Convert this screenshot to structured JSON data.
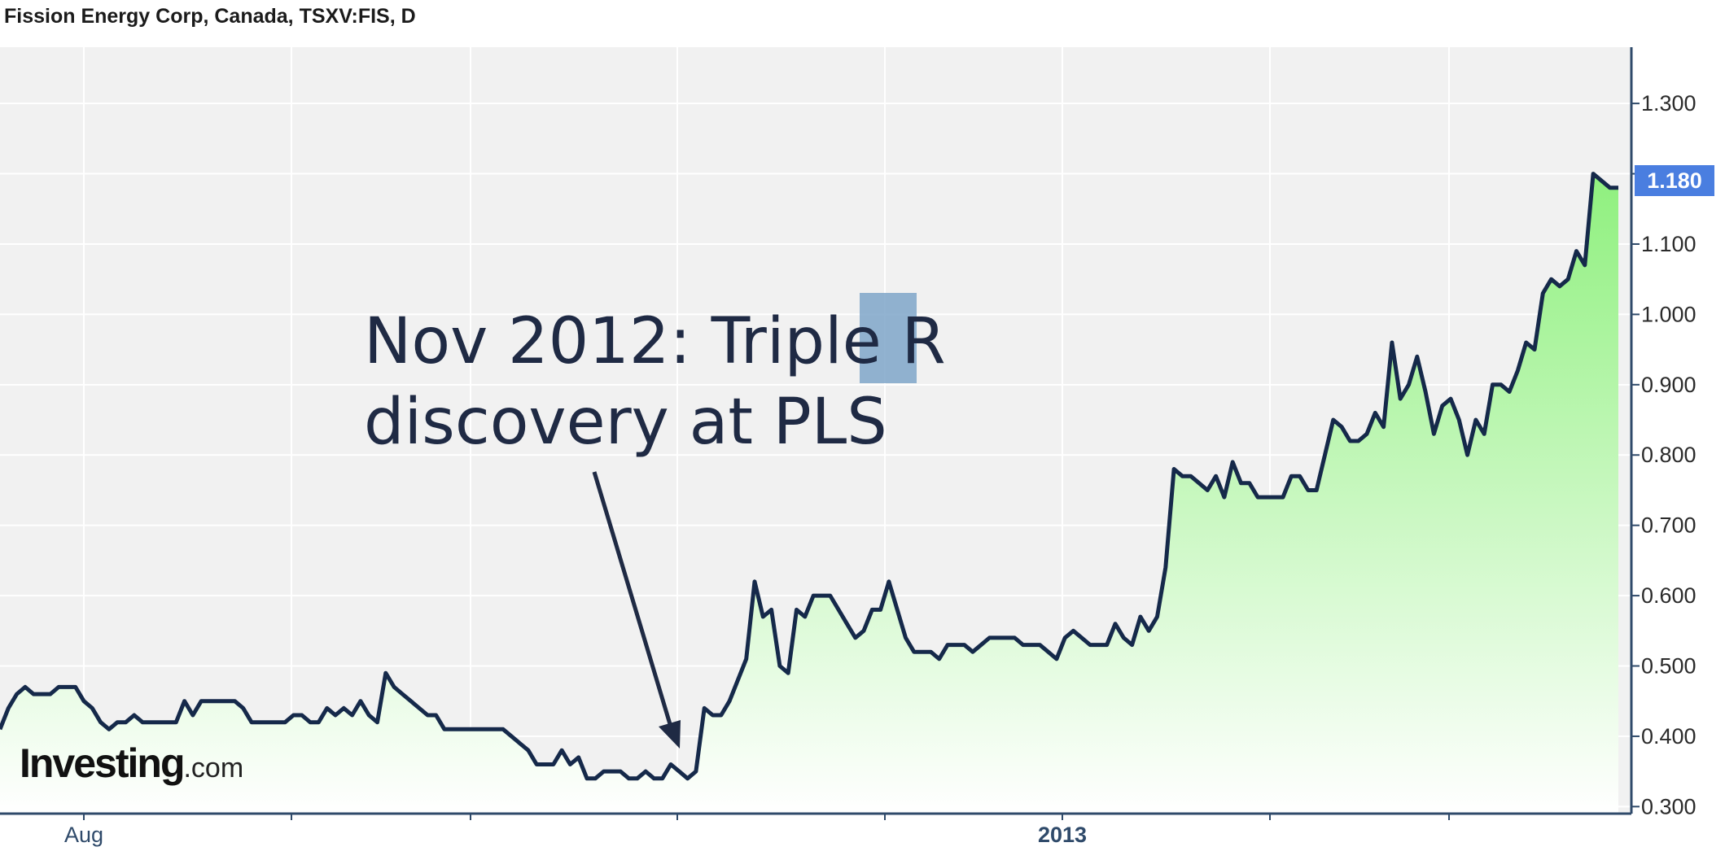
{
  "header": {
    "title": "Fission Energy Corp, Canada, TSXV:FIS, D"
  },
  "annotation": {
    "line1_prefix": "Nov 2012: Triple ",
    "line1_highlight": "R",
    "line2": "discovery at PLS"
  },
  "logo": {
    "name": "Investing",
    "domain": ".com"
  },
  "price_badge": {
    "value": "1.180"
  },
  "colors": {
    "line": "#15294a",
    "fill_top": "#8ff07e",
    "fill_bottom": "#ffffff",
    "plot_bg": "#f1f1f1",
    "axis": "#2f4a6a",
    "badge": "#4a7ee0",
    "highlight": "#7fa6c9"
  },
  "chart_data": {
    "type": "area",
    "title": "Fission Energy Corp, Canada, TSXV:FIS, D",
    "xlabel": "",
    "ylabel": "",
    "ylim": [
      0.29,
      1.38
    ],
    "y_ticks": [
      "1.300",
      "1.200",
      "1.100",
      "1.000",
      "0.900",
      "0.800",
      "0.700",
      "0.600",
      "0.500",
      "0.400",
      "0.300"
    ],
    "x_tick_labels": [
      "Aug",
      "2013"
    ],
    "grid": true,
    "series": [
      {
        "values": [
          0.41,
          0.44,
          0.46,
          0.47,
          0.46,
          0.46,
          0.46,
          0.47,
          0.47,
          0.47,
          0.45,
          0.44,
          0.42,
          0.41,
          0.42,
          0.42,
          0.43,
          0.42,
          0.42,
          0.42,
          0.42,
          0.42,
          0.45,
          0.43,
          0.45,
          0.45,
          0.45,
          0.45,
          0.45,
          0.44,
          0.42,
          0.42,
          0.42,
          0.42,
          0.42,
          0.43,
          0.43,
          0.42,
          0.42,
          0.44,
          0.43,
          0.44,
          0.43,
          0.45,
          0.43,
          0.42,
          0.49,
          0.47,
          0.46,
          0.45,
          0.44,
          0.43,
          0.43,
          0.41,
          0.41,
          0.41,
          0.41,
          0.41,
          0.41,
          0.41,
          0.41,
          0.4,
          0.39,
          0.38,
          0.36,
          0.36,
          0.36,
          0.38,
          0.36,
          0.37,
          0.34,
          0.34,
          0.35,
          0.35,
          0.35,
          0.34,
          0.34,
          0.35,
          0.34,
          0.34,
          0.36,
          0.35,
          0.34,
          0.35,
          0.44,
          0.43,
          0.43,
          0.45,
          0.48,
          0.51,
          0.62,
          0.57,
          0.58,
          0.5,
          0.49,
          0.58,
          0.57,
          0.6,
          0.6,
          0.6,
          0.58,
          0.56,
          0.54,
          0.55,
          0.58,
          0.58,
          0.62,
          0.58,
          0.54,
          0.52,
          0.52,
          0.52,
          0.51,
          0.53,
          0.53,
          0.53,
          0.52,
          0.53,
          0.54,
          0.54,
          0.54,
          0.54,
          0.53,
          0.53,
          0.53,
          0.52,
          0.51,
          0.54,
          0.55,
          0.54,
          0.53,
          0.53,
          0.53,
          0.56,
          0.54,
          0.53,
          0.57,
          0.55,
          0.57,
          0.64,
          0.78,
          0.77,
          0.77,
          0.76,
          0.75,
          0.77,
          0.74,
          0.79,
          0.76,
          0.76,
          0.74,
          0.74,
          0.74,
          0.74,
          0.77,
          0.77,
          0.75,
          0.75,
          0.8,
          0.85,
          0.84,
          0.82,
          0.82,
          0.83,
          0.86,
          0.84,
          0.96,
          0.88,
          0.9,
          0.94,
          0.89,
          0.83,
          0.87,
          0.88,
          0.85,
          0.8,
          0.85,
          0.83,
          0.9,
          0.9,
          0.89,
          0.92,
          0.96,
          0.95,
          1.03,
          1.05,
          1.04,
          1.05,
          1.09,
          1.07,
          1.2,
          1.19,
          1.18,
          1.18
        ]
      }
    ]
  }
}
